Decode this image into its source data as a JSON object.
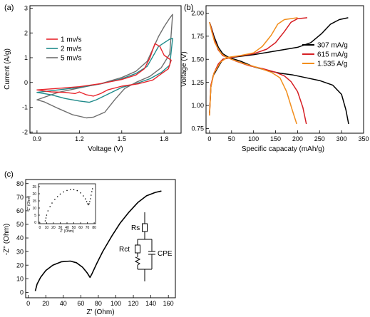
{
  "chart_data": [
    {
      "type": "line",
      "panel_label": "(a)",
      "xlabel": "Voltage (V)",
      "ylabel": "Current (A/g)",
      "xlim": [
        0.85,
        1.92
      ],
      "ylim": [
        -2.05,
        3.1
      ],
      "xticks": [
        0.9,
        1.2,
        1.5,
        1.8
      ],
      "xtick_labels": [
        "0.9",
        "1.2",
        "1.5",
        "1.8"
      ],
      "yticks": [
        -2,
        -1,
        0,
        1,
        2,
        3
      ],
      "ytick_labels": [
        "-2",
        "-1",
        "0",
        "1",
        "2",
        "3"
      ],
      "legend_position": "top-left",
      "series": [
        {
          "name": "1 mv/s",
          "color": "#e8242b",
          "points": [
            [
              0.9,
              -0.3
            ],
            [
              1.05,
              -0.24
            ],
            [
              1.2,
              -0.17
            ],
            [
              1.35,
              -0.05
            ],
            [
              1.5,
              0.12
            ],
            [
              1.6,
              0.3
            ],
            [
              1.66,
              0.55
            ],
            [
              1.7,
              1.0
            ],
            [
              1.735,
              1.57
            ],
            [
              1.77,
              1.45
            ],
            [
              1.8,
              1.1
            ],
            [
              1.85,
              0.9
            ],
            [
              1.83,
              0.55
            ],
            [
              1.78,
              0.35
            ],
            [
              1.72,
              0.1
            ],
            [
              1.62,
              -0.05
            ],
            [
              1.5,
              -0.15
            ],
            [
              1.4,
              -0.3
            ],
            [
              1.35,
              -0.45
            ],
            [
              1.3,
              -0.55
            ],
            [
              1.25,
              -0.5
            ],
            [
              1.2,
              -0.38
            ],
            [
              1.17,
              -0.45
            ],
            [
              1.1,
              -0.4
            ],
            [
              1.0,
              -0.38
            ],
            [
              0.9,
              -0.3
            ]
          ]
        },
        {
          "name": "2 mv/s",
          "color": "#1f8a8a",
          "points": [
            [
              0.9,
              -0.4
            ],
            [
              1.05,
              -0.3
            ],
            [
              1.2,
              -0.2
            ],
            [
              1.35,
              -0.06
            ],
            [
              1.5,
              0.15
            ],
            [
              1.6,
              0.36
            ],
            [
              1.68,
              0.65
            ],
            [
              1.72,
              1.05
            ],
            [
              1.76,
              1.45
            ],
            [
              1.8,
              1.6
            ],
            [
              1.84,
              1.75
            ],
            [
              1.86,
              1.78
            ],
            [
              1.84,
              0.7
            ],
            [
              1.78,
              0.4
            ],
            [
              1.7,
              0.15
            ],
            [
              1.6,
              -0.05
            ],
            [
              1.5,
              -0.2
            ],
            [
              1.4,
              -0.48
            ],
            [
              1.32,
              -0.7
            ],
            [
              1.27,
              -0.8
            ],
            [
              1.2,
              -0.75
            ],
            [
              1.1,
              -0.65
            ],
            [
              1.0,
              -0.5
            ],
            [
              0.9,
              -0.4
            ]
          ]
        },
        {
          "name": "5 mv/s",
          "color": "#6e6e6e",
          "points": [
            [
              0.9,
              -0.7
            ],
            [
              1.05,
              -0.4
            ],
            [
              1.2,
              -0.22
            ],
            [
              1.35,
              -0.05
            ],
            [
              1.5,
              0.2
            ],
            [
              1.6,
              0.45
            ],
            [
              1.68,
              0.85
            ],
            [
              1.72,
              1.35
            ],
            [
              1.76,
              1.85
            ],
            [
              1.8,
              2.25
            ],
            [
              1.84,
              2.6
            ],
            [
              1.86,
              2.75
            ],
            [
              1.84,
              1.15
            ],
            [
              1.78,
              0.6
            ],
            [
              1.7,
              0.25
            ],
            [
              1.6,
              0.0
            ],
            [
              1.52,
              -0.25
            ],
            [
              1.45,
              -0.7
            ],
            [
              1.38,
              -1.2
            ],
            [
              1.3,
              -1.4
            ],
            [
              1.25,
              -1.43
            ],
            [
              1.15,
              -1.3
            ],
            [
              1.05,
              -1.05
            ],
            [
              0.95,
              -0.78
            ],
            [
              0.9,
              -0.7
            ]
          ]
        }
      ]
    },
    {
      "type": "line",
      "panel_label": "(b)",
      "xlabel": "Specific capacaty  (mAh/g)",
      "ylabel": "Voltage (V)",
      "xlim": [
        -8,
        350
      ],
      "ylim": [
        0.7,
        2.08
      ],
      "xticks": [
        0,
        50,
        100,
        150,
        200,
        250,
        300,
        350
      ],
      "xtick_labels": [
        "0",
        "50",
        "100",
        "150",
        "200",
        "250",
        "300",
        "350"
      ],
      "yticks": [
        0.75,
        1.0,
        1.25,
        1.5,
        1.75,
        2.0
      ],
      "ytick_labels": [
        "0.75",
        "1.00",
        "1.25",
        "1.50",
        "1.75",
        "2.00"
      ],
      "legend_position": "right",
      "series": [
        {
          "name": "307 mA/g",
          "color": "#000000",
          "points": [
            [
              0,
              1.9
            ],
            [
              5,
              1.83
            ],
            [
              10,
              1.75
            ],
            [
              20,
              1.63
            ],
            [
              30,
              1.56
            ],
            [
              40,
              1.53
            ],
            [
              50,
              1.51
            ],
            [
              70,
              1.48
            ],
            [
              100,
              1.42
            ],
            [
              130,
              1.38
            ],
            [
              160,
              1.35
            ],
            [
              190,
              1.33
            ],
            [
              220,
              1.3
            ],
            [
              250,
              1.27
            ],
            [
              280,
              1.22
            ],
            [
              300,
              1.12
            ],
            [
              310,
              0.95
            ],
            [
              316,
              0.8
            ]
          ],
          "charge_points": [
            [
              0,
              0.92
            ],
            [
              3,
              1.2
            ],
            [
              8,
              1.32
            ],
            [
              20,
              1.42
            ],
            [
              30,
              1.5
            ],
            [
              50,
              1.52
            ],
            [
              100,
              1.55
            ],
            [
              150,
              1.59
            ],
            [
              200,
              1.63
            ],
            [
              230,
              1.68
            ],
            [
              255,
              1.78
            ],
            [
              275,
              1.88
            ],
            [
              295,
              1.93
            ],
            [
              315,
              1.95
            ]
          ]
        },
        {
          "name": "615 mA/g",
          "color": "#d61f24",
          "points": [
            [
              0,
              1.9
            ],
            [
              5,
              1.82
            ],
            [
              10,
              1.72
            ],
            [
              20,
              1.6
            ],
            [
              30,
              1.54
            ],
            [
              40,
              1.52
            ],
            [
              60,
              1.48
            ],
            [
              90,
              1.43
            ],
            [
              120,
              1.4
            ],
            [
              150,
              1.36
            ],
            [
              170,
              1.32
            ],
            [
              185,
              1.26
            ],
            [
              200,
              1.15
            ],
            [
              212,
              0.98
            ],
            [
              220,
              0.8
            ]
          ],
          "charge_points": [
            [
              0,
              0.9
            ],
            [
              3,
              1.22
            ],
            [
              10,
              1.35
            ],
            [
              20,
              1.45
            ],
            [
              30,
              1.5
            ],
            [
              60,
              1.53
            ],
            [
              100,
              1.56
            ],
            [
              130,
              1.61
            ],
            [
              150,
              1.68
            ],
            [
              170,
              1.8
            ],
            [
              185,
              1.9
            ],
            [
              200,
              1.94
            ],
            [
              222,
              1.95
            ]
          ]
        },
        {
          "name": "1.535 A/g",
          "color": "#f28e1c",
          "points": [
            [
              0,
              1.9
            ],
            [
              5,
              1.8
            ],
            [
              12,
              1.68
            ],
            [
              25,
              1.57
            ],
            [
              35,
              1.53
            ],
            [
              50,
              1.5
            ],
            [
              80,
              1.45
            ],
            [
              110,
              1.41
            ],
            [
              140,
              1.36
            ],
            [
              160,
              1.3
            ],
            [
              175,
              1.15
            ],
            [
              188,
              0.95
            ],
            [
              198,
              0.8
            ]
          ],
          "charge_points": [
            [
              0,
              0.89
            ],
            [
              3,
              1.2
            ],
            [
              10,
              1.35
            ],
            [
              25,
              1.47
            ],
            [
              40,
              1.52
            ],
            [
              70,
              1.54
            ],
            [
              100,
              1.57
            ],
            [
              120,
              1.64
            ],
            [
              140,
              1.76
            ],
            [
              155,
              1.88
            ],
            [
              170,
              1.93
            ],
            [
              200,
              1.95
            ]
          ]
        }
      ]
    },
    {
      "type": "scatter",
      "panel_label": "(c)",
      "xlabel": "Z' (Ohm)",
      "ylabel": "-Z'' (Ohm)",
      "xlim": [
        -3,
        168
      ],
      "ylim": [
        -4,
        83
      ],
      "xticks": [
        0,
        20,
        40,
        60,
        80,
        100,
        120,
        140,
        160
      ],
      "xtick_labels": [
        "0",
        "20",
        "40",
        "60",
        "80",
        "100",
        "120",
        "140",
        "160"
      ],
      "yticks": [
        0,
        10,
        20,
        30,
        40,
        50,
        60,
        70,
        80
      ],
      "ytick_labels": [
        "0",
        "10",
        "20",
        "30",
        "40",
        "50",
        "60",
        "70",
        "80"
      ],
      "series": [
        {
          "name": "",
          "color": "#000000",
          "points": [
            [
              8,
              1
            ],
            [
              10,
              6
            ],
            [
              14,
              11
            ],
            [
              20,
              16
            ],
            [
              28,
              20
            ],
            [
              38,
              22.5
            ],
            [
              48,
              23
            ],
            [
              55,
              21.8
            ],
            [
              62,
              18.5
            ],
            [
              67,
              14.5
            ],
            [
              70.5,
              11
            ],
            [
              73,
              14
            ],
            [
              78,
              21
            ],
            [
              85,
              30
            ],
            [
              95,
              41
            ],
            [
              105,
              51
            ],
            [
              115,
              59
            ],
            [
              125,
              66
            ],
            [
              135,
              71
            ],
            [
              145,
              73.5
            ],
            [
              152,
              74.5
            ]
          ]
        }
      ],
      "inset": {
        "xlabel": "Z' (Ohm)",
        "ylabel": "-Z'' (Ohm)",
        "xlim": [
          -2,
          82
        ],
        "ylim": [
          -1,
          27
        ],
        "xticks": [
          0,
          10,
          20,
          30,
          40,
          50,
          60,
          70,
          80
        ],
        "xtick_labels": [
          "0",
          "10",
          "20",
          "30",
          "40",
          "50",
          "60",
          "70",
          "80"
        ],
        "yticks": [
          0,
          5,
          10,
          15,
          20,
          25
        ],
        "ytick_labels": [
          "0",
          "5",
          "10",
          "15",
          "20",
          "25"
        ],
        "points": [
          [
            8,
            1
          ],
          [
            9,
            3
          ],
          [
            10,
            5
          ],
          [
            12,
            8
          ],
          [
            15,
            11
          ],
          [
            18,
            13.5
          ],
          [
            22,
            16
          ],
          [
            26,
            18
          ],
          [
            30,
            19.8
          ],
          [
            35,
            21.3
          ],
          [
            40,
            22.3
          ],
          [
            45,
            23
          ],
          [
            50,
            22.9
          ],
          [
            55,
            22.2
          ],
          [
            60,
            20.6
          ],
          [
            64,
            18.5
          ],
          [
            67,
            16.4
          ],
          [
            69,
            14.5
          ],
          [
            70.5,
            13
          ],
          [
            71.5,
            12.3
          ],
          [
            72.5,
            13
          ],
          [
            73.5,
            14.5
          ],
          [
            74.5,
            16.5
          ],
          [
            75.5,
            19
          ],
          [
            76.5,
            21.5
          ],
          [
            77.5,
            23.5
          ]
        ]
      },
      "circuit_labels": [
        "Rs",
        "Rct",
        "CPE"
      ]
    }
  ]
}
